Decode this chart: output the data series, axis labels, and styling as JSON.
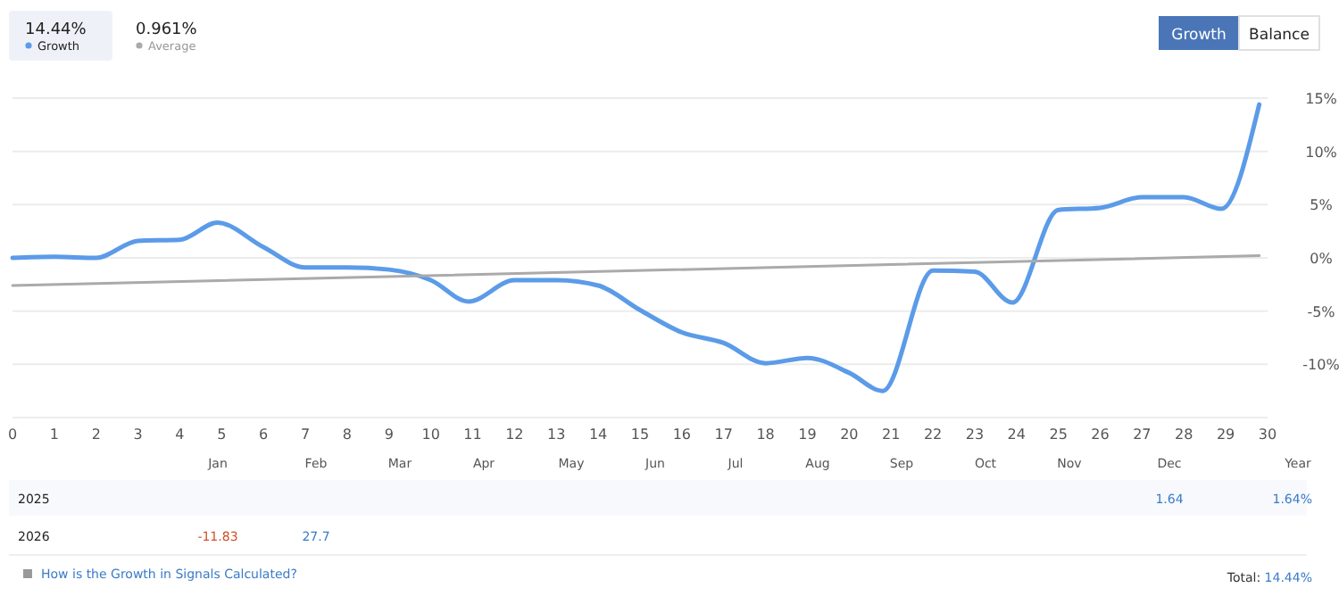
{
  "chart_data": {
    "type": "line",
    "x": [
      0,
      1,
      2,
      3,
      4,
      4.9,
      6,
      7,
      8,
      9,
      10,
      10.9,
      12,
      13,
      14,
      15,
      16,
      17,
      18,
      19,
      20,
      20.8,
      22,
      23,
      23.9,
      25,
      26,
      27,
      28,
      28.9,
      29.8
    ],
    "series": [
      {
        "name": "Growth",
        "color": "#5b9be8",
        "values": [
          0,
          0.1,
          0,
          1.6,
          1.7,
          3.3,
          1.0,
          -0.9,
          -0.9,
          -1.1,
          -2.1,
          -4.1,
          -2.1,
          -2.1,
          -2.6,
          -4.9,
          -7.0,
          -8.0,
          -9.9,
          -9.4,
          -10.8,
          -12.5,
          -1.2,
          -1.3,
          -4.2,
          4.5,
          4.7,
          5.7,
          5.7,
          4.6,
          14.4
        ]
      },
      {
        "name": "Average",
        "color": "#aaaaaa",
        "x": [
          0,
          29.8
        ],
        "values": [
          -2.6,
          0.2
        ]
      }
    ],
    "xlim": [
      0,
      30
    ],
    "xticks": [
      0,
      1,
      2,
      3,
      4,
      5,
      6,
      7,
      8,
      9,
      10,
      11,
      12,
      13,
      14,
      15,
      16,
      17,
      18,
      19,
      20,
      21,
      22,
      23,
      24,
      25,
      26,
      27,
      28,
      29,
      30
    ],
    "ylim": [
      -15,
      15
    ],
    "yticks": [
      {
        "value": -15,
        "label": null
      },
      {
        "value": -10,
        "label": "-10%"
      },
      {
        "value": -5,
        "label": "-5%"
      },
      {
        "value": 0,
        "label": "0%"
      },
      {
        "value": 5,
        "label": "5%"
      },
      {
        "value": 10,
        "label": "10%"
      },
      {
        "value": 15,
        "label": "15%"
      }
    ],
    "grid": "y",
    "legend": "top left",
    "marker": "none",
    "line_style": "solid",
    "annotations": [
      "14.44%",
      "0.961%",
      "Growth",
      "Balance",
      "Year",
      "2025",
      "1.64",
      "1.64%",
      "2026",
      "-11.83",
      "27.7",
      "How is the Growth in Signals Calculated?",
      "Total: 14.44%",
      "Jan",
      "Feb",
      "Mar",
      "Apr",
      "May",
      "Jun",
      "Jul",
      "Aug",
      "Sep",
      "Oct",
      "Nov",
      "Dec"
    ]
  }
}
